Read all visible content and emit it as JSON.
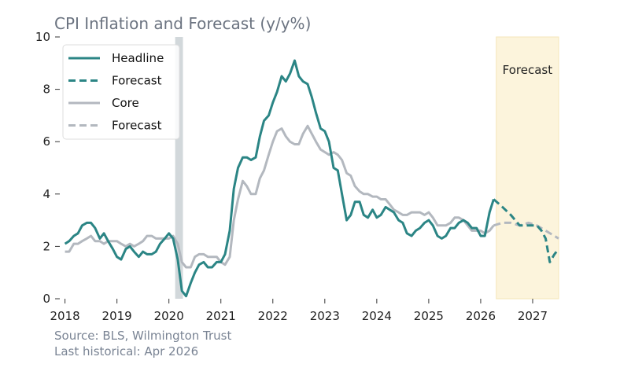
{
  "chart_data": {
    "type": "line",
    "title": "CPI Inflation and Forecast (y/y%)",
    "xlabel": "",
    "ylabel": "",
    "xlim": [
      2017.9,
      2027.5
    ],
    "ylim": [
      0,
      10
    ],
    "yticks": [
      0,
      2,
      4,
      6,
      8,
      10
    ],
    "xticks": [
      2018,
      2019,
      2020,
      2021,
      2022,
      2023,
      2024,
      2025,
      2026,
      2027
    ],
    "grid": false,
    "legend_position": "top-left",
    "forecast_label": "Forecast",
    "forecast_region": [
      2026.3,
      2027.5
    ],
    "recession_band": [
      2020.12,
      2020.27
    ],
    "colors": {
      "headline": "#2b8585",
      "core": "#b3b8bf",
      "forecast_band": "#fcf4dc",
      "recession": "#d2d8db",
      "title": "#6b7380"
    },
    "series": [
      {
        "name": "Headline",
        "color": "#2b8585",
        "style": "solid",
        "points": [
          [
            2018.0,
            2.1
          ],
          [
            2018.08,
            2.2
          ],
          [
            2018.17,
            2.4
          ],
          [
            2018.25,
            2.5
          ],
          [
            2018.33,
            2.8
          ],
          [
            2018.42,
            2.9
          ],
          [
            2018.5,
            2.9
          ],
          [
            2018.58,
            2.7
          ],
          [
            2018.67,
            2.3
          ],
          [
            2018.75,
            2.5
          ],
          [
            2018.83,
            2.2
          ],
          [
            2018.92,
            1.9
          ],
          [
            2019.0,
            1.6
          ],
          [
            2019.08,
            1.5
          ],
          [
            2019.17,
            1.9
          ],
          [
            2019.25,
            2.0
          ],
          [
            2019.33,
            1.8
          ],
          [
            2019.42,
            1.6
          ],
          [
            2019.5,
            1.8
          ],
          [
            2019.58,
            1.7
          ],
          [
            2019.67,
            1.7
          ],
          [
            2019.75,
            1.8
          ],
          [
            2019.83,
            2.1
          ],
          [
            2019.92,
            2.3
          ],
          [
            2020.0,
            2.5
          ],
          [
            2020.08,
            2.3
          ],
          [
            2020.17,
            1.5
          ],
          [
            2020.25,
            0.3
          ],
          [
            2020.33,
            0.1
          ],
          [
            2020.42,
            0.6
          ],
          [
            2020.5,
            1.0
          ],
          [
            2020.58,
            1.3
          ],
          [
            2020.67,
            1.4
          ],
          [
            2020.75,
            1.2
          ],
          [
            2020.83,
            1.2
          ],
          [
            2020.92,
            1.4
          ],
          [
            2021.0,
            1.4
          ],
          [
            2021.08,
            1.7
          ],
          [
            2021.17,
            2.6
          ],
          [
            2021.25,
            4.2
          ],
          [
            2021.33,
            5.0
          ],
          [
            2021.42,
            5.4
          ],
          [
            2021.5,
            5.4
          ],
          [
            2021.58,
            5.3
          ],
          [
            2021.67,
            5.4
          ],
          [
            2021.75,
            6.2
          ],
          [
            2021.83,
            6.8
          ],
          [
            2021.92,
            7.0
          ],
          [
            2022.0,
            7.5
          ],
          [
            2022.08,
            7.9
          ],
          [
            2022.17,
            8.5
          ],
          [
            2022.25,
            8.3
          ],
          [
            2022.33,
            8.6
          ],
          [
            2022.42,
            9.1
          ],
          [
            2022.5,
            8.5
          ],
          [
            2022.58,
            8.3
          ],
          [
            2022.67,
            8.2
          ],
          [
            2022.75,
            7.7
          ],
          [
            2022.83,
            7.1
          ],
          [
            2022.92,
            6.5
          ],
          [
            2023.0,
            6.4
          ],
          [
            2023.08,
            6.0
          ],
          [
            2023.17,
            5.0
          ],
          [
            2023.25,
            4.9
          ],
          [
            2023.33,
            4.0
          ],
          [
            2023.42,
            3.0
          ],
          [
            2023.5,
            3.2
          ],
          [
            2023.58,
            3.7
          ],
          [
            2023.67,
            3.7
          ],
          [
            2023.75,
            3.2
          ],
          [
            2023.83,
            3.1
          ],
          [
            2023.92,
            3.4
          ],
          [
            2024.0,
            3.1
          ],
          [
            2024.08,
            3.2
          ],
          [
            2024.17,
            3.5
          ],
          [
            2024.25,
            3.4
          ],
          [
            2024.33,
            3.3
          ],
          [
            2024.42,
            3.0
          ],
          [
            2024.5,
            2.9
          ],
          [
            2024.58,
            2.5
          ],
          [
            2024.67,
            2.4
          ],
          [
            2024.75,
            2.6
          ],
          [
            2024.83,
            2.7
          ],
          [
            2024.92,
            2.9
          ],
          [
            2025.0,
            3.0
          ],
          [
            2025.08,
            2.8
          ],
          [
            2025.17,
            2.4
          ],
          [
            2025.25,
            2.3
          ],
          [
            2025.33,
            2.4
          ],
          [
            2025.42,
            2.7
          ],
          [
            2025.5,
            2.7
          ],
          [
            2025.58,
            2.9
          ],
          [
            2025.67,
            3.0
          ],
          [
            2025.75,
            2.9
          ],
          [
            2025.83,
            2.7
          ],
          [
            2025.92,
            2.7
          ],
          [
            2026.0,
            2.4
          ],
          [
            2026.08,
            2.4
          ],
          [
            2026.17,
            3.3
          ],
          [
            2026.25,
            3.8
          ]
        ]
      },
      {
        "name": "Forecast",
        "color": "#2b8585",
        "style": "dashed",
        "points": [
          [
            2026.25,
            3.8
          ],
          [
            2026.42,
            3.5
          ],
          [
            2026.58,
            3.2
          ],
          [
            2026.75,
            2.8
          ],
          [
            2026.92,
            2.8
          ],
          [
            2027.08,
            2.8
          ],
          [
            2027.17,
            2.6
          ],
          [
            2027.25,
            2.3
          ],
          [
            2027.33,
            1.4
          ],
          [
            2027.42,
            1.7
          ],
          [
            2027.5,
            1.9
          ]
        ]
      },
      {
        "name": "Core",
        "color": "#b3b8bf",
        "style": "solid",
        "points": [
          [
            2018.0,
            1.8
          ],
          [
            2018.08,
            1.8
          ],
          [
            2018.17,
            2.1
          ],
          [
            2018.25,
            2.1
          ],
          [
            2018.33,
            2.2
          ],
          [
            2018.42,
            2.3
          ],
          [
            2018.5,
            2.4
          ],
          [
            2018.58,
            2.2
          ],
          [
            2018.67,
            2.2
          ],
          [
            2018.75,
            2.1
          ],
          [
            2018.83,
            2.2
          ],
          [
            2018.92,
            2.2
          ],
          [
            2019.0,
            2.2
          ],
          [
            2019.08,
            2.1
          ],
          [
            2019.17,
            2.0
          ],
          [
            2019.25,
            2.1
          ],
          [
            2019.33,
            2.0
          ],
          [
            2019.42,
            2.1
          ],
          [
            2019.5,
            2.2
          ],
          [
            2019.58,
            2.4
          ],
          [
            2019.67,
            2.4
          ],
          [
            2019.75,
            2.3
          ],
          [
            2019.83,
            2.3
          ],
          [
            2019.92,
            2.3
          ],
          [
            2020.0,
            2.3
          ],
          [
            2020.08,
            2.4
          ],
          [
            2020.17,
            2.1
          ],
          [
            2020.25,
            1.4
          ],
          [
            2020.33,
            1.2
          ],
          [
            2020.42,
            1.2
          ],
          [
            2020.5,
            1.6
          ],
          [
            2020.58,
            1.7
          ],
          [
            2020.67,
            1.7
          ],
          [
            2020.75,
            1.6
          ],
          [
            2020.83,
            1.6
          ],
          [
            2020.92,
            1.6
          ],
          [
            2021.0,
            1.4
          ],
          [
            2021.08,
            1.3
          ],
          [
            2021.17,
            1.6
          ],
          [
            2021.25,
            3.0
          ],
          [
            2021.33,
            3.8
          ],
          [
            2021.42,
            4.5
          ],
          [
            2021.5,
            4.3
          ],
          [
            2021.58,
            4.0
          ],
          [
            2021.67,
            4.0
          ],
          [
            2021.75,
            4.6
          ],
          [
            2021.83,
            4.9
          ],
          [
            2021.92,
            5.5
          ],
          [
            2022.0,
            6.0
          ],
          [
            2022.08,
            6.4
          ],
          [
            2022.17,
            6.5
          ],
          [
            2022.25,
            6.2
          ],
          [
            2022.33,
            6.0
          ],
          [
            2022.42,
            5.9
          ],
          [
            2022.5,
            5.9
          ],
          [
            2022.58,
            6.3
          ],
          [
            2022.67,
            6.6
          ],
          [
            2022.75,
            6.3
          ],
          [
            2022.83,
            6.0
          ],
          [
            2022.92,
            5.7
          ],
          [
            2023.0,
            5.6
          ],
          [
            2023.08,
            5.5
          ],
          [
            2023.17,
            5.6
          ],
          [
            2023.25,
            5.5
          ],
          [
            2023.33,
            5.3
          ],
          [
            2023.42,
            4.8
          ],
          [
            2023.5,
            4.7
          ],
          [
            2023.58,
            4.3
          ],
          [
            2023.67,
            4.1
          ],
          [
            2023.75,
            4.0
          ],
          [
            2023.83,
            4.0
          ],
          [
            2023.92,
            3.9
          ],
          [
            2024.0,
            3.9
          ],
          [
            2024.08,
            3.8
          ],
          [
            2024.17,
            3.8
          ],
          [
            2024.25,
            3.6
          ],
          [
            2024.33,
            3.4
          ],
          [
            2024.42,
            3.3
          ],
          [
            2024.5,
            3.2
          ],
          [
            2024.58,
            3.2
          ],
          [
            2024.67,
            3.3
          ],
          [
            2024.75,
            3.3
          ],
          [
            2024.83,
            3.3
          ],
          [
            2024.92,
            3.2
          ],
          [
            2025.0,
            3.3
          ],
          [
            2025.08,
            3.1
          ],
          [
            2025.17,
            2.8
          ],
          [
            2025.25,
            2.8
          ],
          [
            2025.33,
            2.8
          ],
          [
            2025.42,
            2.9
          ],
          [
            2025.5,
            3.1
          ],
          [
            2025.58,
            3.1
          ],
          [
            2025.67,
            3.0
          ],
          [
            2025.75,
            2.8
          ],
          [
            2025.83,
            2.6
          ],
          [
            2025.92,
            2.6
          ],
          [
            2026.0,
            2.6
          ],
          [
            2026.08,
            2.5
          ],
          [
            2026.17,
            2.6
          ],
          [
            2026.25,
            2.8
          ]
        ]
      },
      {
        "name": "Forecast",
        "color": "#b3b8bf",
        "style": "dashed",
        "points": [
          [
            2026.25,
            2.8
          ],
          [
            2026.42,
            2.9
          ],
          [
            2026.58,
            2.9
          ],
          [
            2026.75,
            2.8
          ],
          [
            2026.92,
            2.9
          ],
          [
            2027.08,
            2.8
          ],
          [
            2027.25,
            2.6
          ],
          [
            2027.5,
            2.3
          ]
        ]
      }
    ]
  },
  "footer": {
    "source": "Source: BLS, Wilmington Trust",
    "last_historical": "Last historical: Apr 2026"
  }
}
